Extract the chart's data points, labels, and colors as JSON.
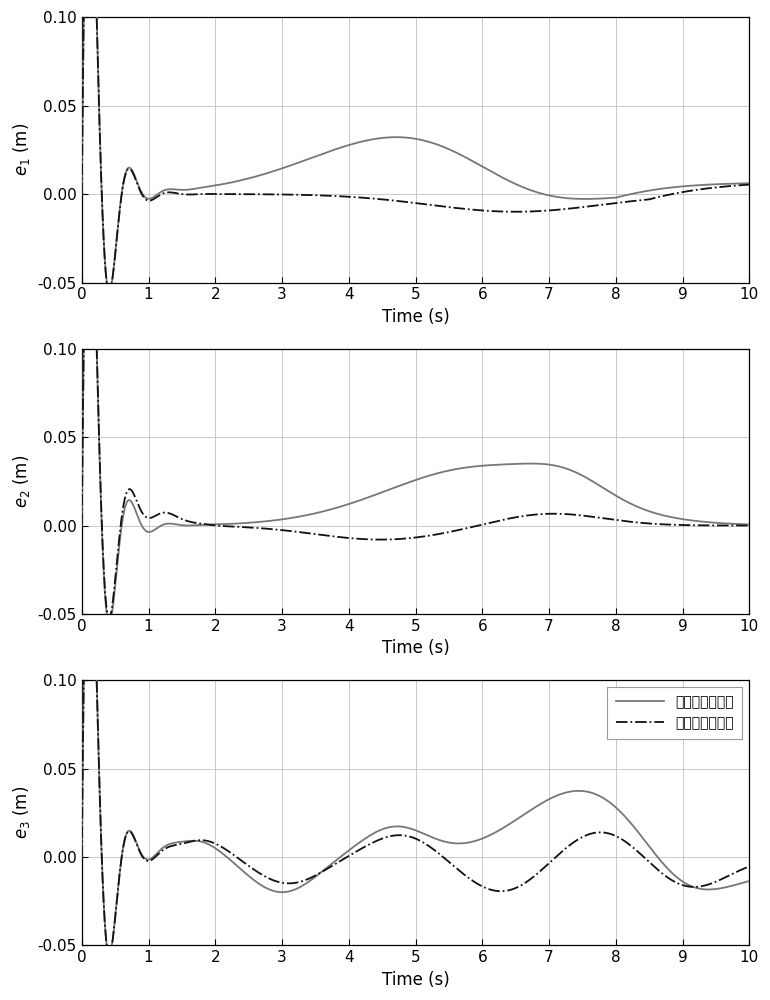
{
  "ylim": [
    -0.05,
    0.1
  ],
  "xlim": [
    0,
    10
  ],
  "xticks": [
    0,
    1,
    2,
    3,
    4,
    5,
    6,
    7,
    8,
    9,
    10
  ],
  "yticks": [
    -0.05,
    0,
    0.05,
    0.1
  ],
  "xlabel": "Time (s)",
  "ylabels_latex": [
    "$e_1$ (m)",
    "$e_2$ (m)",
    "$e_3$ (m)"
  ],
  "legend_labels": [
    "算法实施前误差",
    "算法实施后误差"
  ],
  "line_color_before": "#777777",
  "line_color_after": "#111111",
  "background_color": "#ffffff",
  "grid_color": "#c0c0c0",
  "figsize": [
    7.7,
    10.0
  ],
  "dpi": 100
}
